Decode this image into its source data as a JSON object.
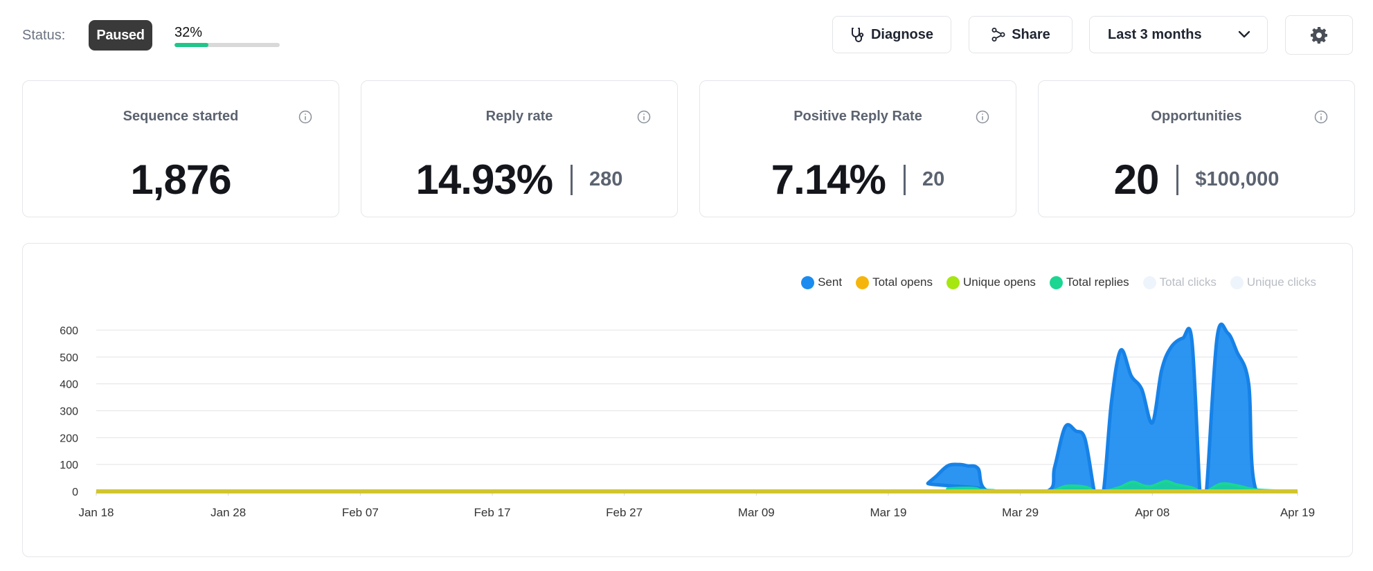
{
  "status": {
    "label": "Status:",
    "badge": "Paused",
    "progress_text": "32%",
    "progress_fraction": 0.32,
    "progress_color": "#20c58a"
  },
  "toolbar": {
    "diagnose_label": "Diagnose",
    "diagnose_icon": "stethoscope-icon",
    "share_label": "Share",
    "share_icon": "share-icon",
    "range_label": "Last 3 months",
    "range_icon": "chevron-down-icon",
    "settings_icon": "gear-icon"
  },
  "cards": [
    {
      "title": "Sequence started",
      "value": "1,876",
      "secondary": ""
    },
    {
      "title": "Reply rate",
      "value": "14.93%",
      "secondary": "280"
    },
    {
      "title": "Positive Reply Rate",
      "value": "7.14%",
      "secondary": "20"
    },
    {
      "title": "Opportunities",
      "value": "20",
      "secondary": "$100,000"
    }
  ],
  "chart_data": {
    "type": "area",
    "x": [
      "Jan 18",
      "Jan 28",
      "Feb 07",
      "Feb 17",
      "Feb 27",
      "Mar 09",
      "Mar 19",
      "Mar 29",
      "Apr 08",
      "Apr 19"
    ],
    "x_days": [
      0,
      10,
      20,
      30,
      40,
      50,
      60,
      70,
      80,
      91
    ],
    "ylim": [
      0,
      600
    ],
    "yticks": [
      0,
      100,
      200,
      300,
      400,
      500,
      600
    ],
    "grid": true,
    "legend_position": "top-right",
    "series": [
      {
        "name": "Sent",
        "color": "#1a8cf0",
        "visible": true,
        "points": [
          [
            0,
            0
          ],
          [
            62.5,
            0
          ],
          [
            63,
            30
          ],
          [
            63.6,
            55
          ],
          [
            64.5,
            95
          ],
          [
            65.4,
            100
          ],
          [
            66,
            95
          ],
          [
            66.8,
            85
          ],
          [
            67.6,
            0
          ],
          [
            72,
            0
          ],
          [
            72.6,
            90
          ],
          [
            73.4,
            240
          ],
          [
            74.2,
            225
          ],
          [
            74.9,
            195
          ],
          [
            75.6,
            0
          ],
          [
            75.8,
            0
          ],
          [
            76.3,
            0
          ],
          [
            76.9,
            330
          ],
          [
            77.6,
            525
          ],
          [
            78.4,
            430
          ],
          [
            79.2,
            380
          ],
          [
            80,
            255
          ],
          [
            80.7,
            450
          ],
          [
            81.4,
            535
          ],
          [
            82.3,
            570
          ],
          [
            83,
            560
          ],
          [
            83.6,
            0
          ],
          [
            83.8,
            0
          ],
          [
            84.1,
            0
          ],
          [
            84.9,
            570
          ],
          [
            85.7,
            590
          ],
          [
            86.4,
            520
          ],
          [
            87.3,
            400
          ],
          [
            87.9,
            0
          ],
          [
            91,
            0
          ]
        ]
      },
      {
        "name": "Total opens",
        "color": "#f5b50c",
        "visible": true,
        "points": [
          [
            0,
            0
          ],
          [
            91,
            0
          ]
        ]
      },
      {
        "name": "Unique opens",
        "color": "#a6e611",
        "visible": true,
        "points": [
          [
            0,
            0
          ],
          [
            91,
            0
          ]
        ]
      },
      {
        "name": "Total replies",
        "color": "#1ad692",
        "visible": true,
        "points": [
          [
            0,
            0
          ],
          [
            63,
            0
          ],
          [
            64.5,
            10
          ],
          [
            66.5,
            12
          ],
          [
            67.6,
            0
          ],
          [
            72,
            0
          ],
          [
            73.5,
            20
          ],
          [
            75,
            16
          ],
          [
            75.6,
            0
          ],
          [
            76.3,
            0
          ],
          [
            77.5,
            15
          ],
          [
            78.5,
            35
          ],
          [
            79.3,
            22
          ],
          [
            80,
            20
          ],
          [
            81,
            38
          ],
          [
            81.8,
            26
          ],
          [
            83,
            14
          ],
          [
            83.6,
            0
          ],
          [
            84.1,
            0
          ],
          [
            85.2,
            28
          ],
          [
            86.4,
            22
          ],
          [
            87.9,
            6
          ],
          [
            91,
            0
          ]
        ]
      },
      {
        "name": "Total clicks",
        "color": "#eef4fb",
        "visible": false,
        "points": []
      },
      {
        "name": "Unique clicks",
        "color": "#eef4fb",
        "visible": false,
        "points": []
      }
    ]
  }
}
